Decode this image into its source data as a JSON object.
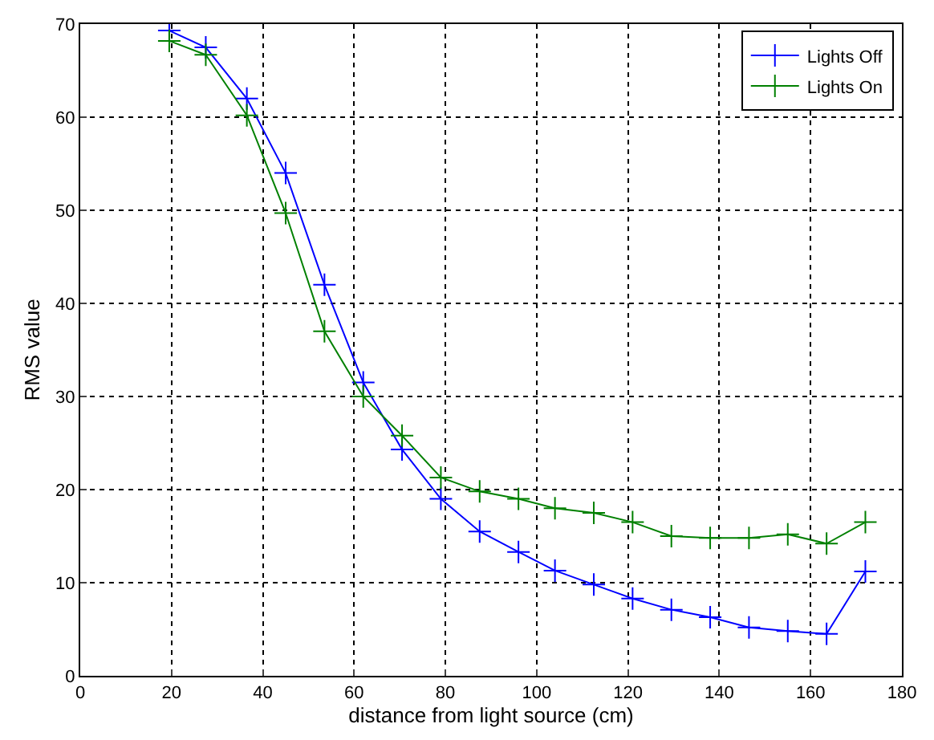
{
  "chart_data": {
    "type": "line",
    "xlabel": "distance from light source (cm)",
    "ylabel": "RMS value",
    "x": [
      19.5,
      27.5,
      36.5,
      45,
      53.5,
      62,
      70.5,
      79,
      87.5,
      96,
      104,
      112.5,
      121,
      129.5,
      138,
      146.5,
      155,
      163.5,
      172
    ],
    "series": [
      {
        "name": "Lights Off",
        "color": "#0000ff",
        "values": [
          69.3,
          67.5,
          62,
          54,
          42,
          31.5,
          24.3,
          19,
          15.5,
          13.3,
          11.3,
          9.8,
          8.3,
          7.1,
          6.3,
          5.2,
          4.8,
          4.5,
          11.2
        ]
      },
      {
        "name": "Lights On",
        "color": "#008000",
        "values": [
          68.2,
          66.7,
          60.2,
          49.7,
          37,
          30,
          25.8,
          21.3,
          19.8,
          19,
          18,
          17.5,
          16.5,
          15,
          14.8,
          14.8,
          15.2,
          14.2,
          16.5
        ]
      }
    ],
    "xlim": [
      0,
      180
    ],
    "xticks": [
      0,
      20,
      40,
      60,
      80,
      100,
      120,
      140,
      160,
      180
    ],
    "ylim": [
      0,
      70
    ],
    "yticks": [
      0,
      10,
      20,
      30,
      40,
      50,
      60,
      70
    ],
    "grid": true,
    "legend": "top right",
    "marker": "cross",
    "line_style": "solid"
  }
}
